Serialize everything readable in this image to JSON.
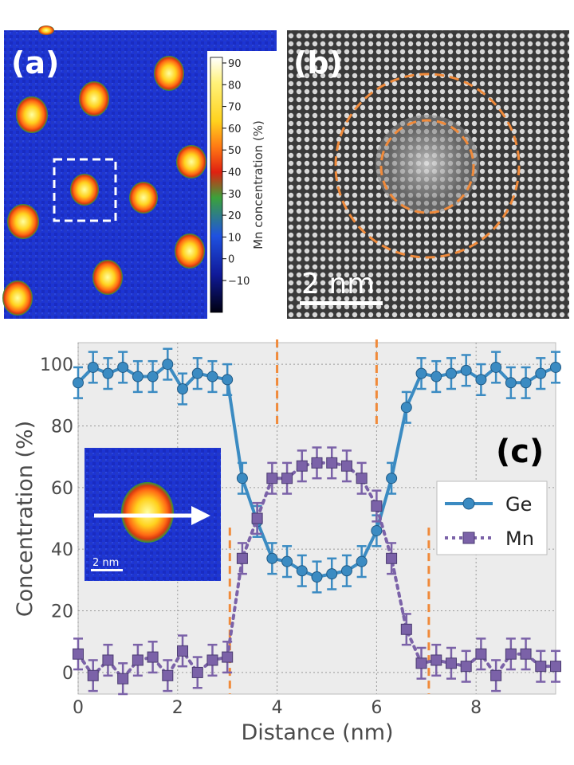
{
  "panels": {
    "a": {
      "label": "(a)",
      "colorbar_label": "Mn concentration (%)",
      "colorbar_ticks": [
        "90",
        "80",
        "70",
        "60",
        "50",
        "40",
        "30",
        "20",
        "10",
        "0",
        "−10"
      ],
      "colors": {
        "background": "#1a2fd0",
        "hot": "#ffe23a",
        "ring": "#3fae3a"
      }
    },
    "b": {
      "label": "(b)",
      "scalebar_label": "2  nm",
      "circle_color": "#f08a3a"
    },
    "c": {
      "label": "(c)",
      "inset_scalebar_label": "2  nm"
    }
  },
  "chart_data": {
    "type": "line",
    "title": "",
    "xlabel": "Distance (nm)",
    "ylabel": "Concentration (%)",
    "xlim": [
      0,
      9.6
    ],
    "ylim": [
      -7,
      107
    ],
    "xticks": [
      0,
      2,
      4,
      6,
      8
    ],
    "xtick_labels": [
      "0",
      "2",
      "4",
      "6",
      "8"
    ],
    "yticks": [
      0,
      20,
      40,
      60,
      80,
      100
    ],
    "ytick_labels": [
      "0",
      "20",
      "40",
      "60",
      "80",
      "100"
    ],
    "grid": true,
    "legend": "right",
    "x": [
      0,
      0.3,
      0.6,
      0.9,
      1.2,
      1.5,
      1.8,
      2.1,
      2.4,
      2.7,
      3.0,
      3.3,
      3.6,
      3.9,
      4.2,
      4.5,
      4.8,
      5.1,
      5.4,
      5.7,
      6.0,
      6.3,
      6.6,
      6.9,
      7.2,
      7.5,
      7.8,
      8.1,
      8.4,
      8.7,
      9.0,
      9.3,
      9.6
    ],
    "series": [
      {
        "name": "Ge",
        "color": "#3b8bc2",
        "marker": "circle",
        "style": "solid",
        "values": [
          94,
          99,
          97,
          99,
          96,
          96,
          100,
          92,
          97,
          96,
          95,
          63,
          49,
          37,
          36,
          33,
          31,
          32,
          33,
          36,
          46,
          63,
          86,
          97,
          96,
          97,
          98,
          95,
          99,
          94,
          94,
          97,
          99
        ],
        "error": 5
      },
      {
        "name": "Mn",
        "color": "#7b62a8",
        "marker": "square",
        "style": "dotted",
        "values": [
          6,
          -1,
          4,
          -2,
          4,
          5,
          -1,
          7,
          0,
          4,
          5,
          37,
          50,
          63,
          63,
          67,
          68,
          68,
          67,
          63,
          54,
          37,
          14,
          3,
          4,
          3,
          2,
          6,
          -1,
          6,
          6,
          2,
          2
        ],
        "error": 5
      }
    ],
    "vlines_inner": [
      4.0,
      6.0
    ],
    "vlines_outer": [
      3.05,
      7.05
    ],
    "vline_color": "#f08a3a"
  }
}
